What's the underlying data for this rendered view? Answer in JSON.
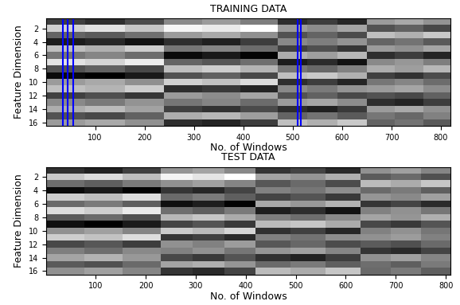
{
  "chart_data": [
    {
      "type": "heatmap",
      "title": "TRAINING DATA",
      "x_label": "No. of Windows",
      "y_label": "Feature Dimension",
      "x_edges": [
        0.5,
        80,
        160,
        240,
        317,
        394,
        470,
        530,
        590,
        650,
        707,
        764,
        820
      ],
      "y": [
        1,
        2,
        3,
        4,
        5,
        6,
        7,
        8,
        9,
        10,
        11,
        12,
        13,
        14,
        15,
        16
      ],
      "cells": [
        [
          0.35,
          0.3,
          0.38,
          0.55,
          0.6,
          0.52,
          0.3,
          0.34,
          0.28,
          0.6,
          0.64,
          0.58
        ],
        [
          0.75,
          0.8,
          0.72,
          0.85,
          0.82,
          0.88,
          0.6,
          0.56,
          0.63,
          0.4,
          0.44,
          0.37
        ],
        [
          0.45,
          0.42,
          0.48,
          0.6,
          0.64,
          0.57,
          0.4,
          0.45,
          0.38,
          0.7,
          0.66,
          0.73
        ],
        [
          0.25,
          0.28,
          0.22,
          0.3,
          0.26,
          0.34,
          0.55,
          0.52,
          0.58,
          0.45,
          0.49,
          0.42
        ],
        [
          0.7,
          0.66,
          0.74,
          0.5,
          0.54,
          0.47,
          0.35,
          0.39,
          0.32,
          0.6,
          0.57,
          0.63
        ],
        [
          0.5,
          0.54,
          0.47,
          0.2,
          0.24,
          0.18,
          0.65,
          0.61,
          0.68,
          0.3,
          0.34,
          0.27
        ],
        [
          0.8,
          0.76,
          0.83,
          0.45,
          0.41,
          0.48,
          0.25,
          0.29,
          0.22,
          0.55,
          0.59,
          0.52
        ],
        [
          0.4,
          0.44,
          0.37,
          0.7,
          0.74,
          0.67,
          0.5,
          0.46,
          0.53,
          0.65,
          0.61,
          0.68
        ],
        [
          0.2,
          0.17,
          0.24,
          0.4,
          0.44,
          0.37,
          0.7,
          0.73,
          0.66,
          0.35,
          0.31,
          0.38
        ],
        [
          0.6,
          0.64,
          0.57,
          0.75,
          0.71,
          0.78,
          0.3,
          0.34,
          0.27,
          0.5,
          0.54,
          0.47
        ],
        [
          0.7,
          0.67,
          0.74,
          0.3,
          0.33,
          0.27,
          0.55,
          0.51,
          0.58,
          0.6,
          0.63,
          0.56
        ],
        [
          0.35,
          0.39,
          0.32,
          0.6,
          0.56,
          0.63,
          0.4,
          0.44,
          0.37,
          0.4,
          0.37,
          0.44
        ],
        [
          0.55,
          0.51,
          0.58,
          0.5,
          0.54,
          0.47,
          0.6,
          0.63,
          0.56,
          0.3,
          0.27,
          0.34
        ],
        [
          0.65,
          0.69,
          0.62,
          0.35,
          0.31,
          0.38,
          0.3,
          0.26,
          0.33,
          0.6,
          0.64,
          0.57
        ],
        [
          0.4,
          0.37,
          0.44,
          0.65,
          0.68,
          0.61,
          0.45,
          0.49,
          0.42,
          0.5,
          0.46,
          0.53
        ],
        [
          0.6,
          0.64,
          0.57,
          0.3,
          0.27,
          0.34,
          0.7,
          0.66,
          0.73,
          0.45,
          0.49,
          0.42
        ]
      ],
      "vlines": [
        35,
        45,
        55,
        510,
        516
      ],
      "color": "#0000ff",
      "xlim": [
        0.5,
        820
      ],
      "xticks": [
        100,
        200,
        300,
        400,
        500,
        600,
        700,
        800
      ],
      "ylim": [
        16.5,
        0.5
      ],
      "yticks": [
        2,
        4,
        6,
        8,
        10,
        12,
        14,
        16
      ]
    },
    {
      "type": "heatmap",
      "title": "TEST DATA",
      "x_label": "No. of Windows",
      "y_label": "Feature Dimension",
      "x_edges": [
        0.5,
        77,
        154,
        230,
        293,
        357,
        420,
        490,
        560,
        630,
        690,
        750,
        810
      ],
      "y": [
        1,
        2,
        3,
        4,
        5,
        6,
        7,
        8,
        9,
        10,
        11,
        12,
        13,
        14,
        15,
        16
      ],
      "cells": [
        [
          0.32,
          0.28,
          0.36,
          0.58,
          0.62,
          0.55,
          0.33,
          0.37,
          0.3,
          0.57,
          0.61,
          0.54
        ],
        [
          0.72,
          0.77,
          0.69,
          0.83,
          0.79,
          0.86,
          0.62,
          0.58,
          0.65,
          0.43,
          0.47,
          0.4
        ],
        [
          0.48,
          0.44,
          0.51,
          0.57,
          0.61,
          0.54,
          0.42,
          0.47,
          0.39,
          0.68,
          0.64,
          0.71
        ],
        [
          0.22,
          0.26,
          0.2,
          0.33,
          0.29,
          0.37,
          0.53,
          0.5,
          0.56,
          0.47,
          0.51,
          0.44
        ],
        [
          0.73,
          0.69,
          0.77,
          0.47,
          0.51,
          0.44,
          0.37,
          0.41,
          0.34,
          0.58,
          0.55,
          0.61
        ],
        [
          0.47,
          0.51,
          0.44,
          0.23,
          0.27,
          0.2,
          0.63,
          0.59,
          0.66,
          0.33,
          0.37,
          0.3
        ],
        [
          0.77,
          0.73,
          0.8,
          0.48,
          0.44,
          0.51,
          0.27,
          0.31,
          0.24,
          0.53,
          0.57,
          0.5
        ],
        [
          0.43,
          0.47,
          0.4,
          0.67,
          0.71,
          0.64,
          0.52,
          0.48,
          0.55,
          0.62,
          0.58,
          0.65
        ],
        [
          0.23,
          0.19,
          0.26,
          0.37,
          0.41,
          0.34,
          0.68,
          0.71,
          0.64,
          0.38,
          0.34,
          0.41
        ],
        [
          0.57,
          0.61,
          0.54,
          0.72,
          0.68,
          0.75,
          0.32,
          0.36,
          0.29,
          0.53,
          0.57,
          0.5
        ],
        [
          0.73,
          0.7,
          0.77,
          0.33,
          0.36,
          0.3,
          0.53,
          0.49,
          0.56,
          0.57,
          0.6,
          0.53
        ],
        [
          0.38,
          0.42,
          0.35,
          0.57,
          0.53,
          0.6,
          0.42,
          0.46,
          0.39,
          0.43,
          0.4,
          0.47
        ],
        [
          0.52,
          0.48,
          0.55,
          0.53,
          0.57,
          0.5,
          0.58,
          0.61,
          0.54,
          0.33,
          0.3,
          0.37
        ],
        [
          0.62,
          0.66,
          0.59,
          0.38,
          0.34,
          0.41,
          0.32,
          0.28,
          0.35,
          0.57,
          0.61,
          0.54
        ],
        [
          0.43,
          0.4,
          0.47,
          0.62,
          0.65,
          0.58,
          0.47,
          0.51,
          0.44,
          0.48,
          0.44,
          0.51
        ],
        [
          0.57,
          0.61,
          0.54,
          0.33,
          0.3,
          0.37,
          0.68,
          0.64,
          0.71,
          0.47,
          0.51,
          0.44
        ]
      ],
      "xlim": [
        0.5,
        810
      ],
      "xticks": [
        100,
        200,
        300,
        400,
        500,
        600,
        700,
        800
      ],
      "ylim": [
        16.5,
        0.5
      ],
      "yticks": [
        2,
        4,
        6,
        8,
        10,
        12,
        14,
        16
      ]
    }
  ]
}
